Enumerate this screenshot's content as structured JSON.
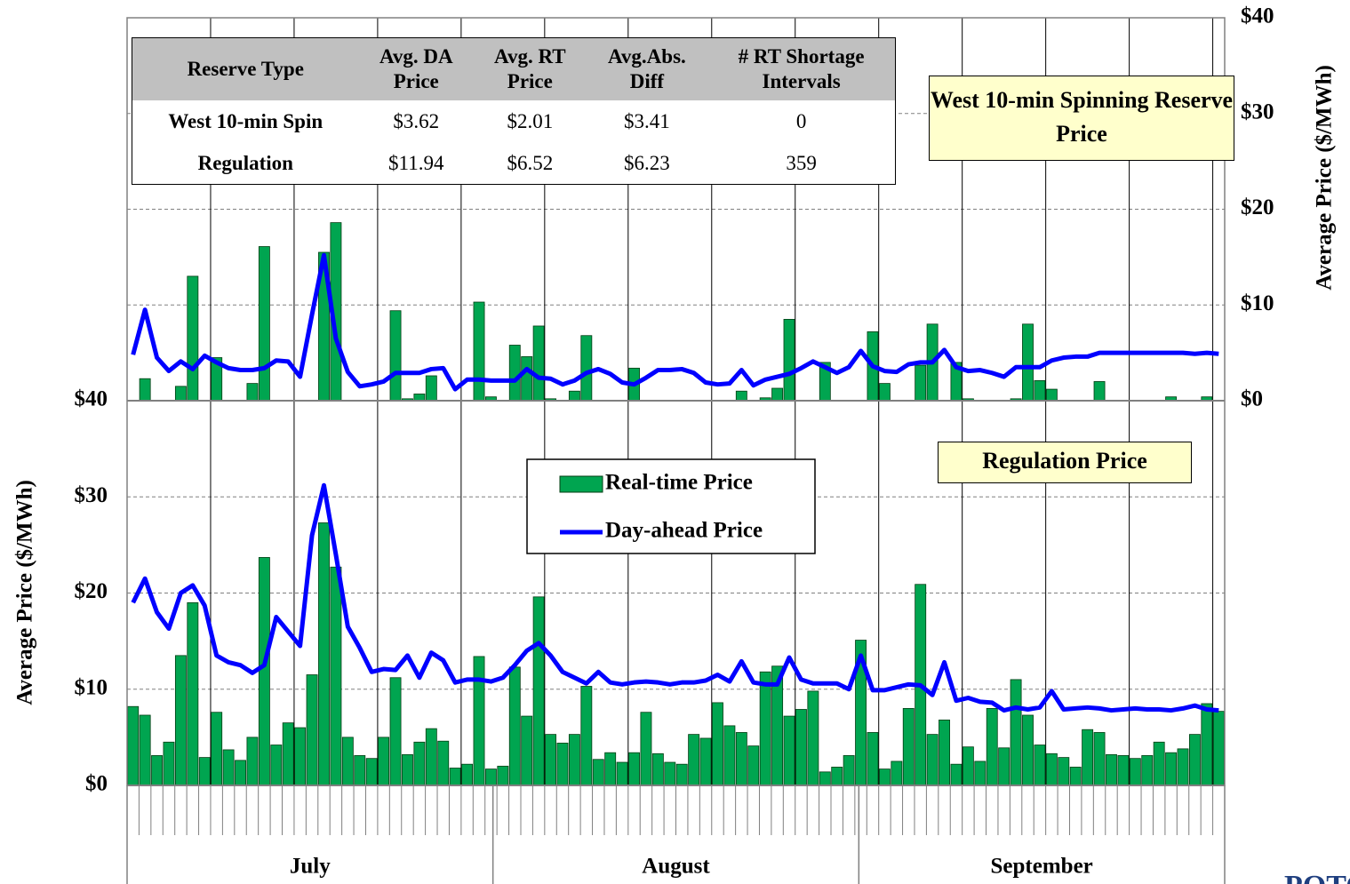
{
  "chart_data": [
    {
      "type": "bar-line",
      "title": "West 10-min Spinning Reserve Price",
      "y2label": "Average Price ($/MWh)",
      "categories": [
        null,
        null,
        null,
        null,
        null,
        null,
        null,
        null,
        null,
        null,
        null,
        null,
        null,
        null,
        null,
        null,
        null,
        null,
        null,
        null,
        null,
        null,
        null,
        null,
        null,
        null,
        null,
        null,
        null,
        null,
        null,
        null,
        null,
        null,
        null,
        null,
        null,
        null,
        null,
        null,
        null,
        null,
        null,
        null,
        null,
        null,
        null,
        null,
        null,
        null,
        null,
        null,
        null,
        null,
        null,
        null,
        null,
        null,
        null,
        null,
        null,
        null,
        null,
        null,
        null,
        null,
        null,
        null,
        null,
        null,
        null,
        null,
        null,
        null,
        null,
        null,
        null,
        null,
        null,
        null,
        null,
        null,
        null,
        null,
        null,
        null,
        null,
        null,
        null,
        null,
        null,
        null
      ],
      "series": [
        {
          "kind": "bar",
          "axis": "y2",
          "color": "#00a550",
          "values": [
            0,
            2.3,
            0,
            0,
            1.5,
            13,
            0,
            4.5,
            0,
            0,
            1.8,
            16.1,
            0,
            0,
            0,
            0,
            15.5,
            18.6,
            0,
            0,
            0,
            0,
            9.4,
            0.2,
            0.7,
            2.6,
            0,
            0,
            0,
            10.3,
            0.4,
            0,
            5.8,
            4.6,
            7.8,
            0.2,
            0,
            1,
            6.8,
            0,
            0,
            0,
            3.4,
            0,
            0,
            0,
            0,
            0,
            0,
            0,
            0,
            1,
            0,
            0.3,
            1.3,
            8.5,
            0,
            0,
            4,
            0,
            0,
            0,
            7.2,
            1.8,
            0,
            0,
            3.7,
            8,
            0,
            4,
            0.2,
            0,
            0,
            0,
            0.2,
            8,
            2.1,
            1.2,
            0,
            0,
            0,
            2,
            0,
            0,
            0,
            0,
            0,
            0.4,
            0,
            0,
            0.4,
            0
          ]
        },
        {
          "kind": "line",
          "axis": "y2",
          "color": "#0000ff",
          "values": [
            4.8,
            9.5,
            4.5,
            3.1,
            4.1,
            3.3,
            4.7,
            4,
            3.4,
            3.2,
            3.2,
            3.4,
            4.2,
            4.1,
            2.5,
            9,
            15.2,
            6.5,
            3,
            1.5,
            1.7,
            2,
            2.9,
            2.9,
            2.9,
            3.3,
            3.4,
            1.2,
            2.2,
            2.2,
            2.1,
            2.1,
            2.1,
            3.3,
            2.4,
            2.3,
            1.7,
            2.1,
            2.9,
            3.3,
            2.8,
            1.9,
            1.7,
            2.4,
            3.2,
            3.2,
            3.3,
            2.9,
            1.9,
            1.7,
            1.8,
            3.2,
            1.6,
            2.2,
            2.5,
            2.8,
            3.4,
            4.1,
            3.5,
            2.9,
            3.5,
            5.2,
            3.6,
            3.1,
            3,
            3.8,
            4,
            4,
            5.3,
            3.5,
            3.1,
            3.2,
            2.9,
            2.5,
            3.5,
            3.5,
            3.5,
            4.2,
            4.5,
            4.6,
            4.6,
            5,
            5,
            5,
            5,
            5,
            5,
            5,
            5,
            4.9,
            5,
            4.9
          ]
        }
      ],
      "y2lim": [
        0,
        40
      ],
      "y2ticks": [
        {
          "value": 0,
          "label": "$0"
        },
        {
          "value": 10,
          "label": "$10"
        },
        {
          "value": 20,
          "label": "$20"
        },
        {
          "value": 30,
          "label": "$30"
        },
        {
          "value": 40,
          "label": "$40"
        }
      ],
      "grid": true
    },
    {
      "type": "bar-line",
      "title": "Regulation Price",
      "ylabel": "Average Price ($/MWh)",
      "categories": [
        null,
        null,
        null,
        null,
        null,
        null,
        null,
        null,
        null,
        null,
        null,
        null,
        null,
        null,
        null,
        null,
        null,
        null,
        null,
        null,
        null,
        null,
        null,
        null,
        null,
        null,
        null,
        null,
        null,
        null,
        null,
        null,
        null,
        null,
        null,
        null,
        null,
        null,
        null,
        null,
        null,
        null,
        null,
        null,
        null,
        null,
        null,
        null,
        null,
        null,
        null,
        null,
        null,
        null,
        null,
        null,
        null,
        null,
        null,
        null,
        null,
        null,
        null,
        null,
        null,
        null,
        null,
        null,
        null,
        null,
        null,
        null,
        null,
        null,
        null,
        null,
        null,
        null,
        null,
        null,
        null,
        null,
        null,
        null,
        null,
        null,
        null,
        null,
        null,
        null,
        null,
        null
      ],
      "x_groups": [
        "July",
        "August",
        "September"
      ],
      "series": [
        {
          "kind": "bar",
          "name": "Real-time Price",
          "color": "#00a550",
          "values": [
            8.2,
            7.3,
            3.1,
            4.5,
            13.5,
            19,
            2.9,
            7.6,
            3.7,
            2.6,
            5,
            23.7,
            4.2,
            6.5,
            6,
            11.5,
            27.3,
            22.7,
            5,
            3.1,
            2.8,
            5,
            11.2,
            3.2,
            4.5,
            5.9,
            4.6,
            1.8,
            2.2,
            13.4,
            1.7,
            2,
            12.3,
            7.2,
            19.6,
            5.3,
            4.4,
            5.3,
            10.3,
            2.7,
            3.4,
            2.4,
            3.4,
            7.6,
            3.3,
            2.4,
            2.2,
            5.3,
            4.9,
            8.6,
            6.2,
            5.5,
            4.1,
            11.8,
            12.4,
            7.2,
            7.9,
            9.8,
            1.4,
            1.9,
            3.1,
            15.1,
            5.5,
            1.7,
            2.5,
            8,
            20.9,
            5.3,
            6.8,
            2.2,
            4,
            2.5,
            8,
            3.9,
            11,
            7.3,
            4.2,
            3.3,
            2.9,
            1.9,
            5.8,
            5.5,
            3.2,
            3.1,
            2.8,
            3.1,
            4.5,
            3.4,
            3.8,
            5.3,
            8.5,
            7.7
          ]
        },
        {
          "kind": "line",
          "name": "Day-ahead Price",
          "color": "#0000ff",
          "values": [
            19,
            21.5,
            18,
            16.3,
            20,
            20.8,
            18.7,
            13.5,
            12.8,
            12.5,
            11.7,
            12.5,
            17.5,
            16,
            14.5,
            26,
            31.2,
            24,
            16.5,
            14.3,
            11.8,
            12.1,
            12,
            13.5,
            11.2,
            13.8,
            13,
            10.7,
            11,
            11,
            10.8,
            11.2,
            12.5,
            14,
            14.8,
            13.5,
            11.8,
            11.2,
            10.6,
            11.8,
            10.7,
            10.5,
            10.7,
            10.8,
            10.7,
            10.5,
            10.7,
            10.7,
            10.9,
            11.5,
            10.8,
            12.9,
            10.7,
            10.5,
            10.5,
            13.3,
            11,
            10.6,
            10.6,
            10.6,
            10,
            13.5,
            9.9,
            9.9,
            10.2,
            10.5,
            10.4,
            9.4,
            12.8,
            8.8,
            9.1,
            8.7,
            8.6,
            7.8,
            8.1,
            7.9,
            8.1,
            9.8,
            7.9,
            8,
            8.1,
            8,
            7.8,
            7.9,
            8,
            7.9,
            7.9,
            7.8,
            8,
            8.3,
            7.9,
            7.8
          ]
        }
      ],
      "ylim": [
        0,
        40
      ],
      "yticks": [
        {
          "value": 0,
          "label": "$0"
        },
        {
          "value": 10,
          "label": "$10"
        },
        {
          "value": 20,
          "label": "$20"
        },
        {
          "value": 30,
          "label": "$30"
        },
        {
          "value": 40,
          "label": "$40"
        }
      ],
      "grid": true
    }
  ],
  "table": {
    "header": [
      [
        "Reserve Type"
      ],
      [
        "Avg. DA",
        "Price"
      ],
      [
        "Avg. RT",
        "Price"
      ],
      [
        "Avg.Abs.",
        "Diff"
      ],
      [
        "# RT Shortage",
        "Intervals"
      ]
    ],
    "rows": [
      [
        "West 10-min Spin",
        "$3.62",
        "$2.01",
        "$3.41",
        "0"
      ],
      [
        "Regulation",
        "$11.94",
        "$6.52",
        "$6.23",
        "359"
      ]
    ]
  },
  "logo": "POTO"
}
